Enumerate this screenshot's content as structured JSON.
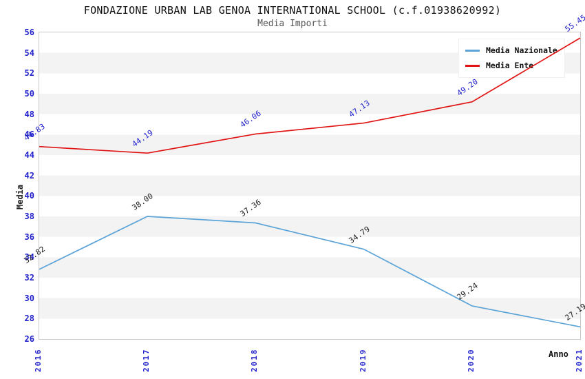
{
  "header": {
    "title": "FONDAZIONE URBAN LAB GENOA INTERNATIONAL SCHOOL (c.f.01938620992)",
    "subtitle": "Media Importi"
  },
  "chart_data": {
    "type": "line",
    "x": [
      "2016",
      "2017",
      "2018",
      "2019",
      "2020",
      "2021"
    ],
    "series": [
      {
        "name": "Media Nazionale",
        "color": "#5ca3d8",
        "label_color": "#1a1a1a",
        "values": [
          32.82,
          38.0,
          37.36,
          34.79,
          29.24,
          27.19
        ]
      },
      {
        "name": "Media Ente",
        "color": "#e11414",
        "label_color": "#2222cc",
        "values": [
          44.83,
          44.19,
          46.06,
          47.13,
          49.2,
          55.45
        ]
      }
    ],
    "xlabel": "Anno",
    "ylabel": "Media",
    "ylim": [
      26,
      56
    ],
    "ytick_step": 2,
    "axis_tick_color": "#2222cc",
    "grid": "horizontal-bands",
    "band_colors": [
      "#ffffff",
      "#f3f3f3"
    ],
    "legend_position": "top-right"
  }
}
